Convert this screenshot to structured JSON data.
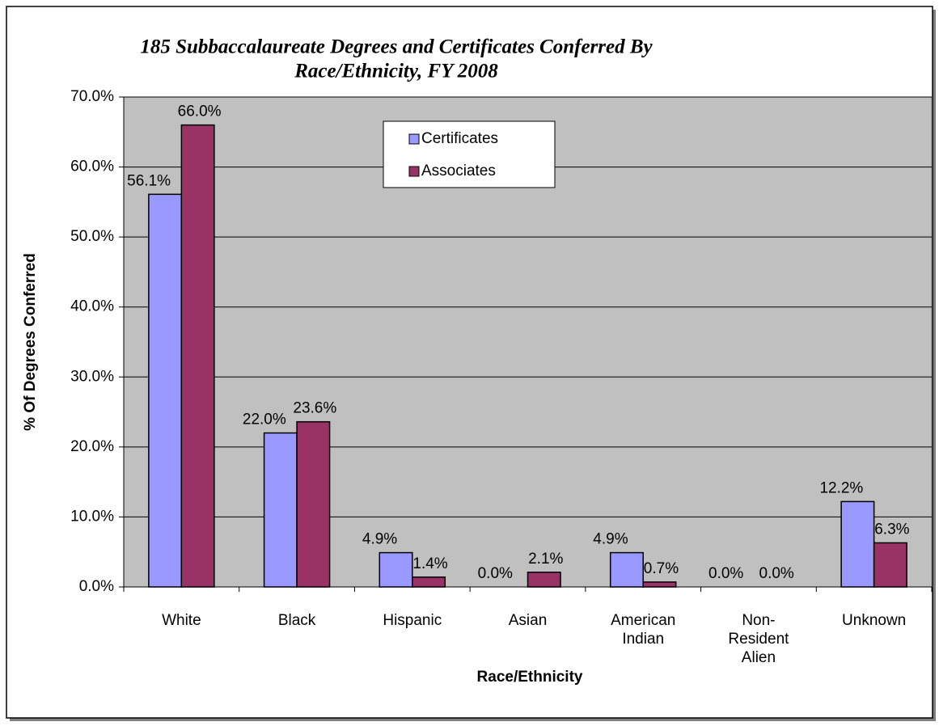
{
  "chart_data": {
    "type": "bar",
    "title": [
      "185 Subbaccalaureate Degrees and Certificates Conferred By",
      "Race/Ethnicity, FY 2008"
    ],
    "xlabel": "Race/Ethnicity",
    "ylabel": "% Of Degrees Conferred",
    "categories": [
      "White",
      "Black",
      "Hispanic",
      "Asian",
      "American Indian",
      "Non-Resident Alien",
      "Unknown"
    ],
    "series": [
      {
        "name": "Certificates",
        "color": "#9999ff",
        "values": [
          56.1,
          22.0,
          4.9,
          0.0,
          4.9,
          0.0,
          12.2
        ],
        "value_labels": [
          "56.1%",
          "22.0%",
          "4.9%",
          "0.0%",
          "4.9%",
          "0.0%",
          "12.2%"
        ]
      },
      {
        "name": "Associates",
        "color": "#993366",
        "values": [
          66.0,
          23.6,
          1.4,
          2.1,
          0.7,
          0.0,
          6.3
        ],
        "value_labels": [
          "66.0%",
          "23.6%",
          "1.4%",
          "2.1%",
          "0.7%",
          "0.0%",
          "6.3%"
        ]
      }
    ],
    "ylim": [
      0,
      70
    ],
    "yticks": [
      {
        "value": 0,
        "label": "0.0%"
      },
      {
        "value": 10,
        "label": "10.0%"
      },
      {
        "value": 20,
        "label": "20.0%"
      },
      {
        "value": 30,
        "label": "30.0%"
      },
      {
        "value": 40,
        "label": "40.0%"
      },
      {
        "value": 50,
        "label": "50.0%"
      },
      {
        "value": 60,
        "label": "60.0%"
      },
      {
        "value": 70,
        "label": "70.0%"
      }
    ],
    "grid": true,
    "plot_background": "#c0c0c0",
    "legend": "top"
  }
}
